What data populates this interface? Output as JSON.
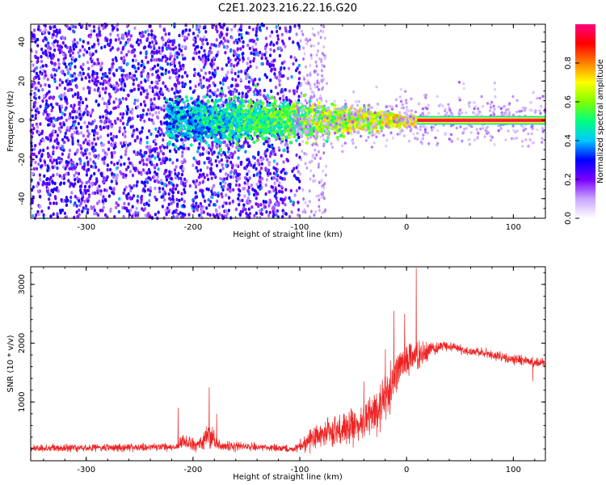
{
  "title": "C2E1.2023.216.22.16.G20",
  "chart_data": [
    {
      "type": "heatmap",
      "xlabel": "Height of straight line (km)",
      "ylabel": "Frequency (Hz)",
      "xlim": [
        -352,
        130
      ],
      "ylim": [
        -50,
        49
      ],
      "xticks": [
        -300,
        -200,
        -100,
        0,
        100
      ],
      "yticks": [
        -40,
        -20,
        0,
        20,
        40
      ],
      "xtick_labels": [
        "-300",
        "-200",
        "-100",
        "0",
        "100"
      ],
      "ytick_labels": [
        "-40",
        "-20",
        "0",
        "20",
        "40"
      ],
      "colorbar": {
        "label": "Normalized spectral amplitude",
        "range": [
          0,
          1
        ],
        "ticks": [
          0.0,
          0.2,
          0.4,
          0.6,
          0.8
        ],
        "tick_labels": [
          "0.0",
          "0.2",
          "0.4",
          "0.6",
          "0.8"
        ],
        "colors": [
          "#ffffff",
          "#c9a6ff",
          "#7a00ff",
          "#0000ff",
          "#00c8ff",
          "#00ff80",
          "#80ff00",
          "#ffff00",
          "#ff8000",
          "#ff0000",
          "#ff0080"
        ]
      },
      "features": {
        "noise_region_x": [
          -352,
          -100
        ],
        "noise_amplitude_range": [
          0.1,
          0.3
        ],
        "sparse_region_x": [
          -100,
          -75
        ],
        "signal_band_center_hz": 0,
        "signal_band_start_x": -225,
        "signal_band_halfwidth_hz": [
          [
            -225,
            8
          ],
          [
            -100,
            6
          ],
          [
            -30,
            3
          ],
          [
            0,
            1.5
          ],
          [
            130,
            1
          ]
        ],
        "strong_carrier_x": [
          10,
          130
        ],
        "strong_carrier_amplitude": 1.0
      }
    },
    {
      "type": "line",
      "xlabel": "Height of straight line (km)",
      "ylabel": "SNR (10 * v/v)",
      "xlim": [
        -352,
        130
      ],
      "ylim": [
        0,
        3300
      ],
      "xticks": [
        -300,
        -200,
        -100,
        0,
        100
      ],
      "yticks": [
        1000,
        2000,
        3000
      ],
      "xtick_labels": [
        "-300",
        "-200",
        "-100",
        "0",
        "100"
      ],
      "ytick_labels": [
        "1000",
        "2000",
        "3000"
      ],
      "series": [
        {
          "color": "#ee2222",
          "envelope": {
            "x": [
              -352,
              -300,
              -250,
              -215,
              -210,
              -195,
              -185,
              -175,
              -160,
              -140,
              -120,
              -105,
              -95,
              -80,
              -60,
              -45,
              -30,
              -20,
              -12,
              -8,
              0,
              8,
              15,
              25,
              35,
              45,
              60,
              80,
              100,
              115,
              130
            ],
            "mean": [
              210,
              220,
              230,
              235,
              320,
              260,
              420,
              260,
              240,
              230,
              220,
              190,
              320,
              450,
              520,
              620,
              820,
              1050,
              1350,
              1550,
              1700,
              1750,
              1800,
              1900,
              1960,
              1930,
              1860,
              1800,
              1730,
              1680,
              1650
            ],
            "noise": [
              90,
              90,
              90,
              90,
              260,
              120,
              380,
              140,
              110,
              100,
              90,
              80,
              220,
              320,
              380,
              430,
              560,
              620,
              620,
              520,
              460,
              380,
              280,
              160,
              110,
              110,
              110,
              110,
              120,
              120,
              120
            ]
          },
          "spikes": [
            [
              -214,
              900
            ],
            [
              -185,
              1250
            ],
            [
              -178,
              800
            ],
            [
              -12,
              2550
            ],
            [
              9,
              3280
            ],
            [
              -20,
              1900
            ],
            [
              -40,
              1350
            ],
            [
              -2,
              2500
            ],
            [
              118,
              1350
            ]
          ]
        }
      ]
    }
  ]
}
